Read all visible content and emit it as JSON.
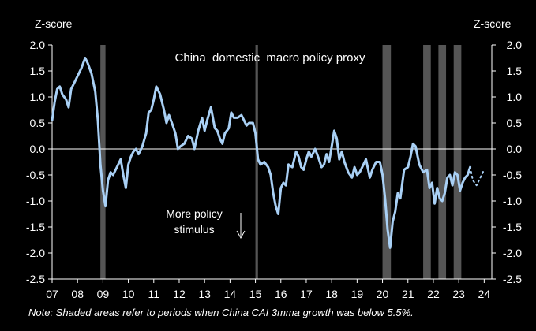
{
  "chart_data": {
    "type": "line",
    "title": "China  domestic  macro policy proxy",
    "ylabel_left": "Z-score",
    "ylabel_right": "Z-score",
    "ylim": [
      -2.5,
      2.0
    ],
    "yticks": [
      2.0,
      1.5,
      1.0,
      0.5,
      0.0,
      -0.5,
      -1.0,
      -1.5,
      -2.0,
      -2.5
    ],
    "xlim": [
      2007,
      2024.3
    ],
    "xticks": [
      {
        "x": 2007,
        "label": "07"
      },
      {
        "x": 2008,
        "label": "08"
      },
      {
        "x": 2009,
        "label": "09"
      },
      {
        "x": 2010,
        "label": "10"
      },
      {
        "x": 2011,
        "label": "11"
      },
      {
        "x": 2012,
        "label": "12"
      },
      {
        "x": 2013,
        "label": "13"
      },
      {
        "x": 2014,
        "label": "14"
      },
      {
        "x": 2015,
        "label": "15"
      },
      {
        "x": 2016,
        "label": "16"
      },
      {
        "x": 2017,
        "label": "17"
      },
      {
        "x": 2018,
        "label": "18"
      },
      {
        "x": 2019,
        "label": "19"
      },
      {
        "x": 2020,
        "label": "20"
      },
      {
        "x": 2021,
        "label": "21"
      },
      {
        "x": 2022,
        "label": "22"
      },
      {
        "x": 2023,
        "label": "23"
      },
      {
        "x": 2024,
        "label": "24"
      }
    ],
    "shaded_periods": [
      [
        2008.9,
        2009.1
      ],
      [
        2015.0,
        2015.1
      ],
      [
        2020.0,
        2020.33
      ],
      [
        2021.6,
        2021.9
      ],
      [
        2022.2,
        2022.5
      ],
      [
        2022.8,
        2023.1
      ]
    ],
    "series": [
      {
        "color": "#a9d0f5",
        "x": [
          2007.0,
          2007.1,
          2007.2,
          2007.3,
          2007.4,
          2007.55,
          2007.65,
          2007.75,
          2007.85,
          2008.0,
          2008.15,
          2008.3,
          2008.4,
          2008.55,
          2008.7,
          2008.8,
          2008.9,
          2009.0,
          2009.1,
          2009.2,
          2009.3,
          2009.4,
          2009.55,
          2009.7,
          2009.8,
          2009.9,
          2010.0,
          2010.1,
          2010.2,
          2010.3,
          2010.4,
          2010.55,
          2010.7,
          2010.8,
          2010.9,
          2011.0,
          2011.1,
          2011.25,
          2011.4,
          2011.5,
          2011.6,
          2011.75,
          2011.85,
          2011.95,
          2012.05,
          2012.2,
          2012.35,
          2012.5,
          2012.6,
          2012.75,
          2012.9,
          2013.0,
          2013.1,
          2013.25,
          2013.4,
          2013.5,
          2013.6,
          2013.7,
          2013.8,
          2013.95,
          2014.05,
          2014.15,
          2014.3,
          2014.45,
          2014.55,
          2014.65,
          2014.75,
          2014.9,
          2015.0,
          2015.1,
          2015.2,
          2015.35,
          2015.5,
          2015.6,
          2015.7,
          2015.8,
          2015.9,
          2016.0,
          2016.1,
          2016.2,
          2016.3,
          2016.45,
          2016.6,
          2016.7,
          2016.8,
          2016.9,
          2017.0,
          2017.1,
          2017.2,
          2017.35,
          2017.5,
          2017.6,
          2017.7,
          2017.8,
          2017.9,
          2018.0,
          2018.1,
          2018.2,
          2018.3,
          2018.4,
          2018.5,
          2018.65,
          2018.8,
          2018.9,
          2019.0,
          2019.1,
          2019.2,
          2019.35,
          2019.5,
          2019.6,
          2019.75,
          2019.9,
          2020.0,
          2020.1,
          2020.2,
          2020.3,
          2020.4,
          2020.5,
          2020.6,
          2020.7,
          2020.85,
          2021.0,
          2021.1,
          2021.2,
          2021.3,
          2021.45,
          2021.6,
          2021.75,
          2021.85,
          2021.95,
          2022.05,
          2022.15,
          2022.25,
          2022.35,
          2022.45,
          2022.55,
          2022.65,
          2022.75,
          2022.85,
          2022.95,
          2023.05,
          2023.15,
          2023.25,
          2023.35,
          2023.45
        ],
        "values": [
          0.55,
          0.9,
          1.15,
          1.2,
          1.05,
          0.95,
          0.8,
          1.15,
          1.25,
          1.4,
          1.55,
          1.75,
          1.65,
          1.45,
          1.1,
          0.55,
          -0.3,
          -0.8,
          -1.1,
          -0.6,
          -0.45,
          -0.5,
          -0.35,
          -0.2,
          -0.5,
          -0.75,
          -0.3,
          -0.15,
          -0.05,
          0.0,
          -0.1,
          0.05,
          0.3,
          0.7,
          0.75,
          0.95,
          1.2,
          1.05,
          0.75,
          0.5,
          0.65,
          0.45,
          0.3,
          0.0,
          0.05,
          0.1,
          0.25,
          0.2,
          0.0,
          0.35,
          0.6,
          0.35,
          0.55,
          0.8,
          0.4,
          0.35,
          0.2,
          0.1,
          0.3,
          0.4,
          0.7,
          0.6,
          0.6,
          0.65,
          0.55,
          0.45,
          0.5,
          0.5,
          0.3,
          -0.2,
          -0.3,
          -0.25,
          -0.35,
          -0.5,
          -0.85,
          -1.1,
          -1.25,
          -0.75,
          -0.65,
          -0.7,
          -0.3,
          -0.35,
          -0.05,
          -0.15,
          -0.35,
          -0.4,
          -0.2,
          -0.05,
          -0.15,
          0.0,
          -0.2,
          -0.35,
          -0.3,
          -0.1,
          -0.25,
          0.05,
          0.35,
          0.2,
          -0.2,
          -0.05,
          -0.25,
          -0.45,
          -0.55,
          -0.35,
          -0.5,
          -0.45,
          -0.35,
          -0.2,
          -0.55,
          -0.4,
          -0.25,
          -0.25,
          -0.5,
          -0.95,
          -1.55,
          -1.9,
          -1.4,
          -1.2,
          -0.85,
          -0.95,
          -0.4,
          -0.35,
          -0.15,
          0.1,
          0.05,
          -0.3,
          -0.45,
          -0.4,
          -0.75,
          -0.65,
          -1.05,
          -0.75,
          -0.95,
          -1.0,
          -0.85,
          -0.55,
          -0.5,
          -0.7,
          -0.45,
          -0.5,
          -0.8,
          -0.65,
          -0.55,
          -0.5,
          -0.35
        ]
      },
      {
        "color": "#a9d0f5",
        "dash": true,
        "x": [
          2023.45,
          2023.55,
          2023.7,
          2023.85,
          2024.0
        ],
        "values": [
          -0.35,
          -0.6,
          -0.7,
          -0.55,
          -0.4
        ]
      }
    ],
    "annotations": [
      {
        "text": "More policy",
        "x": 2014.4,
        "y": -1.3
      },
      {
        "text": "stimulus",
        "x": 2014.2,
        "y": -1.55
      }
    ],
    "note": "Note: Shaded areas refer to periods when China CAI 3mma growth was below 5.5%."
  }
}
